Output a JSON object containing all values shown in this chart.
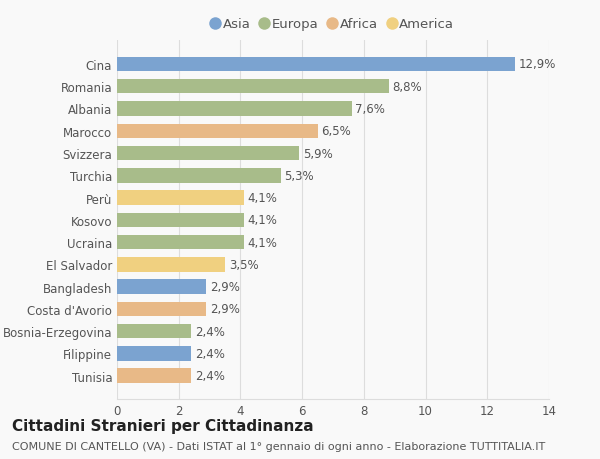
{
  "categories": [
    "Tunisia",
    "Filippine",
    "Bosnia-Erzegovina",
    "Costa d'Avorio",
    "Bangladesh",
    "El Salvador",
    "Ucraina",
    "Kosovo",
    "Perù",
    "Turchia",
    "Svizzera",
    "Marocco",
    "Albania",
    "Romania",
    "Cina"
  ],
  "values": [
    2.4,
    2.4,
    2.4,
    2.9,
    2.9,
    3.5,
    4.1,
    4.1,
    4.1,
    5.3,
    5.9,
    6.5,
    7.6,
    8.8,
    12.9
  ],
  "labels": [
    "2,4%",
    "2,4%",
    "2,4%",
    "2,9%",
    "2,9%",
    "3,5%",
    "4,1%",
    "4,1%",
    "4,1%",
    "5,3%",
    "5,9%",
    "6,5%",
    "7,6%",
    "8,8%",
    "12,9%"
  ],
  "colors": [
    "#e8b987",
    "#7ba3d0",
    "#a8bc8a",
    "#e8b987",
    "#7ba3d0",
    "#f0d080",
    "#a8bc8a",
    "#a8bc8a",
    "#f0d080",
    "#a8bc8a",
    "#a8bc8a",
    "#e8b987",
    "#a8bc8a",
    "#a8bc8a",
    "#7ba3d0"
  ],
  "continent_colors": {
    "Asia": "#7ba3d0",
    "Europa": "#a8bc8a",
    "Africa": "#e8b987",
    "America": "#f0d080"
  },
  "xlim": [
    0,
    14
  ],
  "xticks": [
    0,
    2,
    4,
    6,
    8,
    10,
    12,
    14
  ],
  "title": "Cittadini Stranieri per Cittadinanza",
  "subtitle": "COMUNE DI CANTELLO (VA) - Dati ISTAT al 1° gennaio di ogni anno - Elaborazione TUTTITALIA.IT",
  "background_color": "#f9f9f9",
  "grid_color": "#dddddd",
  "bar_height": 0.65,
  "title_fontsize": 11,
  "subtitle_fontsize": 8,
  "label_fontsize": 8.5,
  "tick_fontsize": 8.5,
  "legend_fontsize": 9.5
}
